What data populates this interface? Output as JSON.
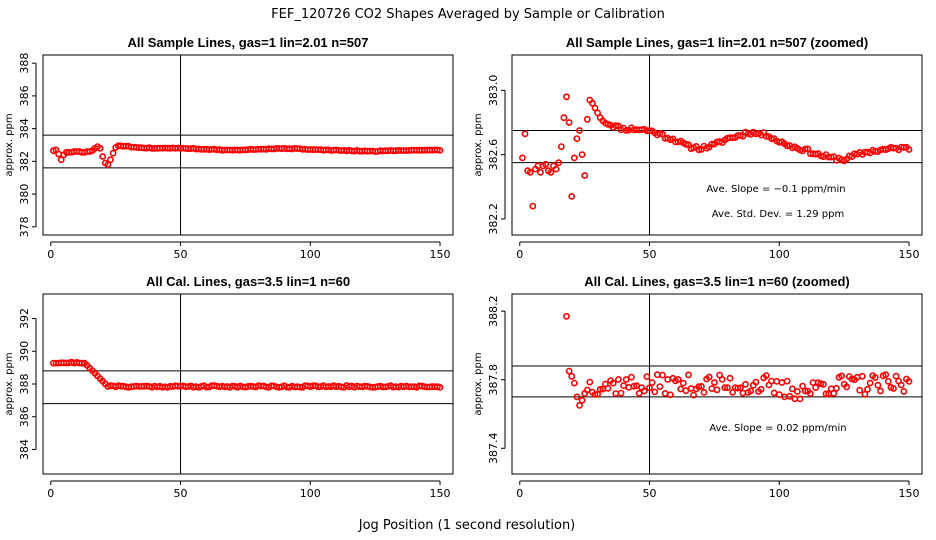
{
  "figure": {
    "title": "FEF_120726  CO2 Shapes Averaged by Sample or Calibration",
    "xlabel": "Jog Position (1 second resolution)"
  },
  "chart_data": [
    {
      "type": "scatter",
      "title": "All Sample Lines, gas=1 lin=2.01 n=507",
      "xlabel": "",
      "ylabel": "approx. ppm",
      "xlim": [
        -3,
        155
      ],
      "ylim": [
        377.5,
        388.5
      ],
      "xticks": [
        0,
        50,
        100,
        150
      ],
      "yticks": [
        378,
        380,
        382,
        384,
        386,
        388
      ],
      "hlines": [
        381.6,
        383.6
      ],
      "vline": 50,
      "annotations": [],
      "series": [
        {
          "kind": "sample_full"
        }
      ]
    },
    {
      "type": "scatter",
      "title": "All Sample Lines, gas=1 lin=2.01 n=507 (zoomed)",
      "xlabel": "",
      "ylabel": "approx. ppm",
      "xlim": [
        -3,
        155
      ],
      "ylim": [
        382.1,
        383.22
      ],
      "xticks": [
        0,
        50,
        100,
        150
      ],
      "yticks": [
        382.2,
        382.6,
        383.0
      ],
      "hlines": [
        382.55,
        382.75
      ],
      "vline": 50,
      "annotations": [
        "Ave. Slope =  −0.1  ppm/min",
        "Ave. Std. Dev. =  1.29  ppm"
      ],
      "series": [
        {
          "kind": "sample_zoom"
        }
      ]
    },
    {
      "type": "scatter",
      "title": "All Cal. Lines, gas=3.5 lin=1 n=60",
      "xlabel": "",
      "ylabel": "approx. ppm",
      "xlim": [
        -3,
        155
      ],
      "ylim": [
        382.5,
        393.5
      ],
      "xticks": [
        0,
        50,
        100,
        150
      ],
      "yticks": [
        384,
        386,
        388,
        390,
        392
      ],
      "hlines": [
        386.8,
        388.8
      ],
      "vline": 50,
      "annotations": [],
      "series": [
        {
          "kind": "cal_full"
        }
      ]
    },
    {
      "type": "scatter",
      "title": "All Cal. Lines, gas=3.5 lin=1 n=60 (zoomed)",
      "xlabel": "",
      "ylabel": "approx. ppm",
      "xlim": [
        -3,
        155
      ],
      "ylim": [
        387.25,
        388.3
      ],
      "xticks": [
        0,
        50,
        100,
        150
      ],
      "yticks": [
        387.4,
        387.8,
        388.2
      ],
      "hlines": [
        387.7,
        387.88
      ],
      "vline": 50,
      "annotations": [
        "Ave. Slope =  0.02  ppm/min"
      ],
      "series": [
        {
          "kind": "cal_zoom"
        }
      ]
    }
  ]
}
